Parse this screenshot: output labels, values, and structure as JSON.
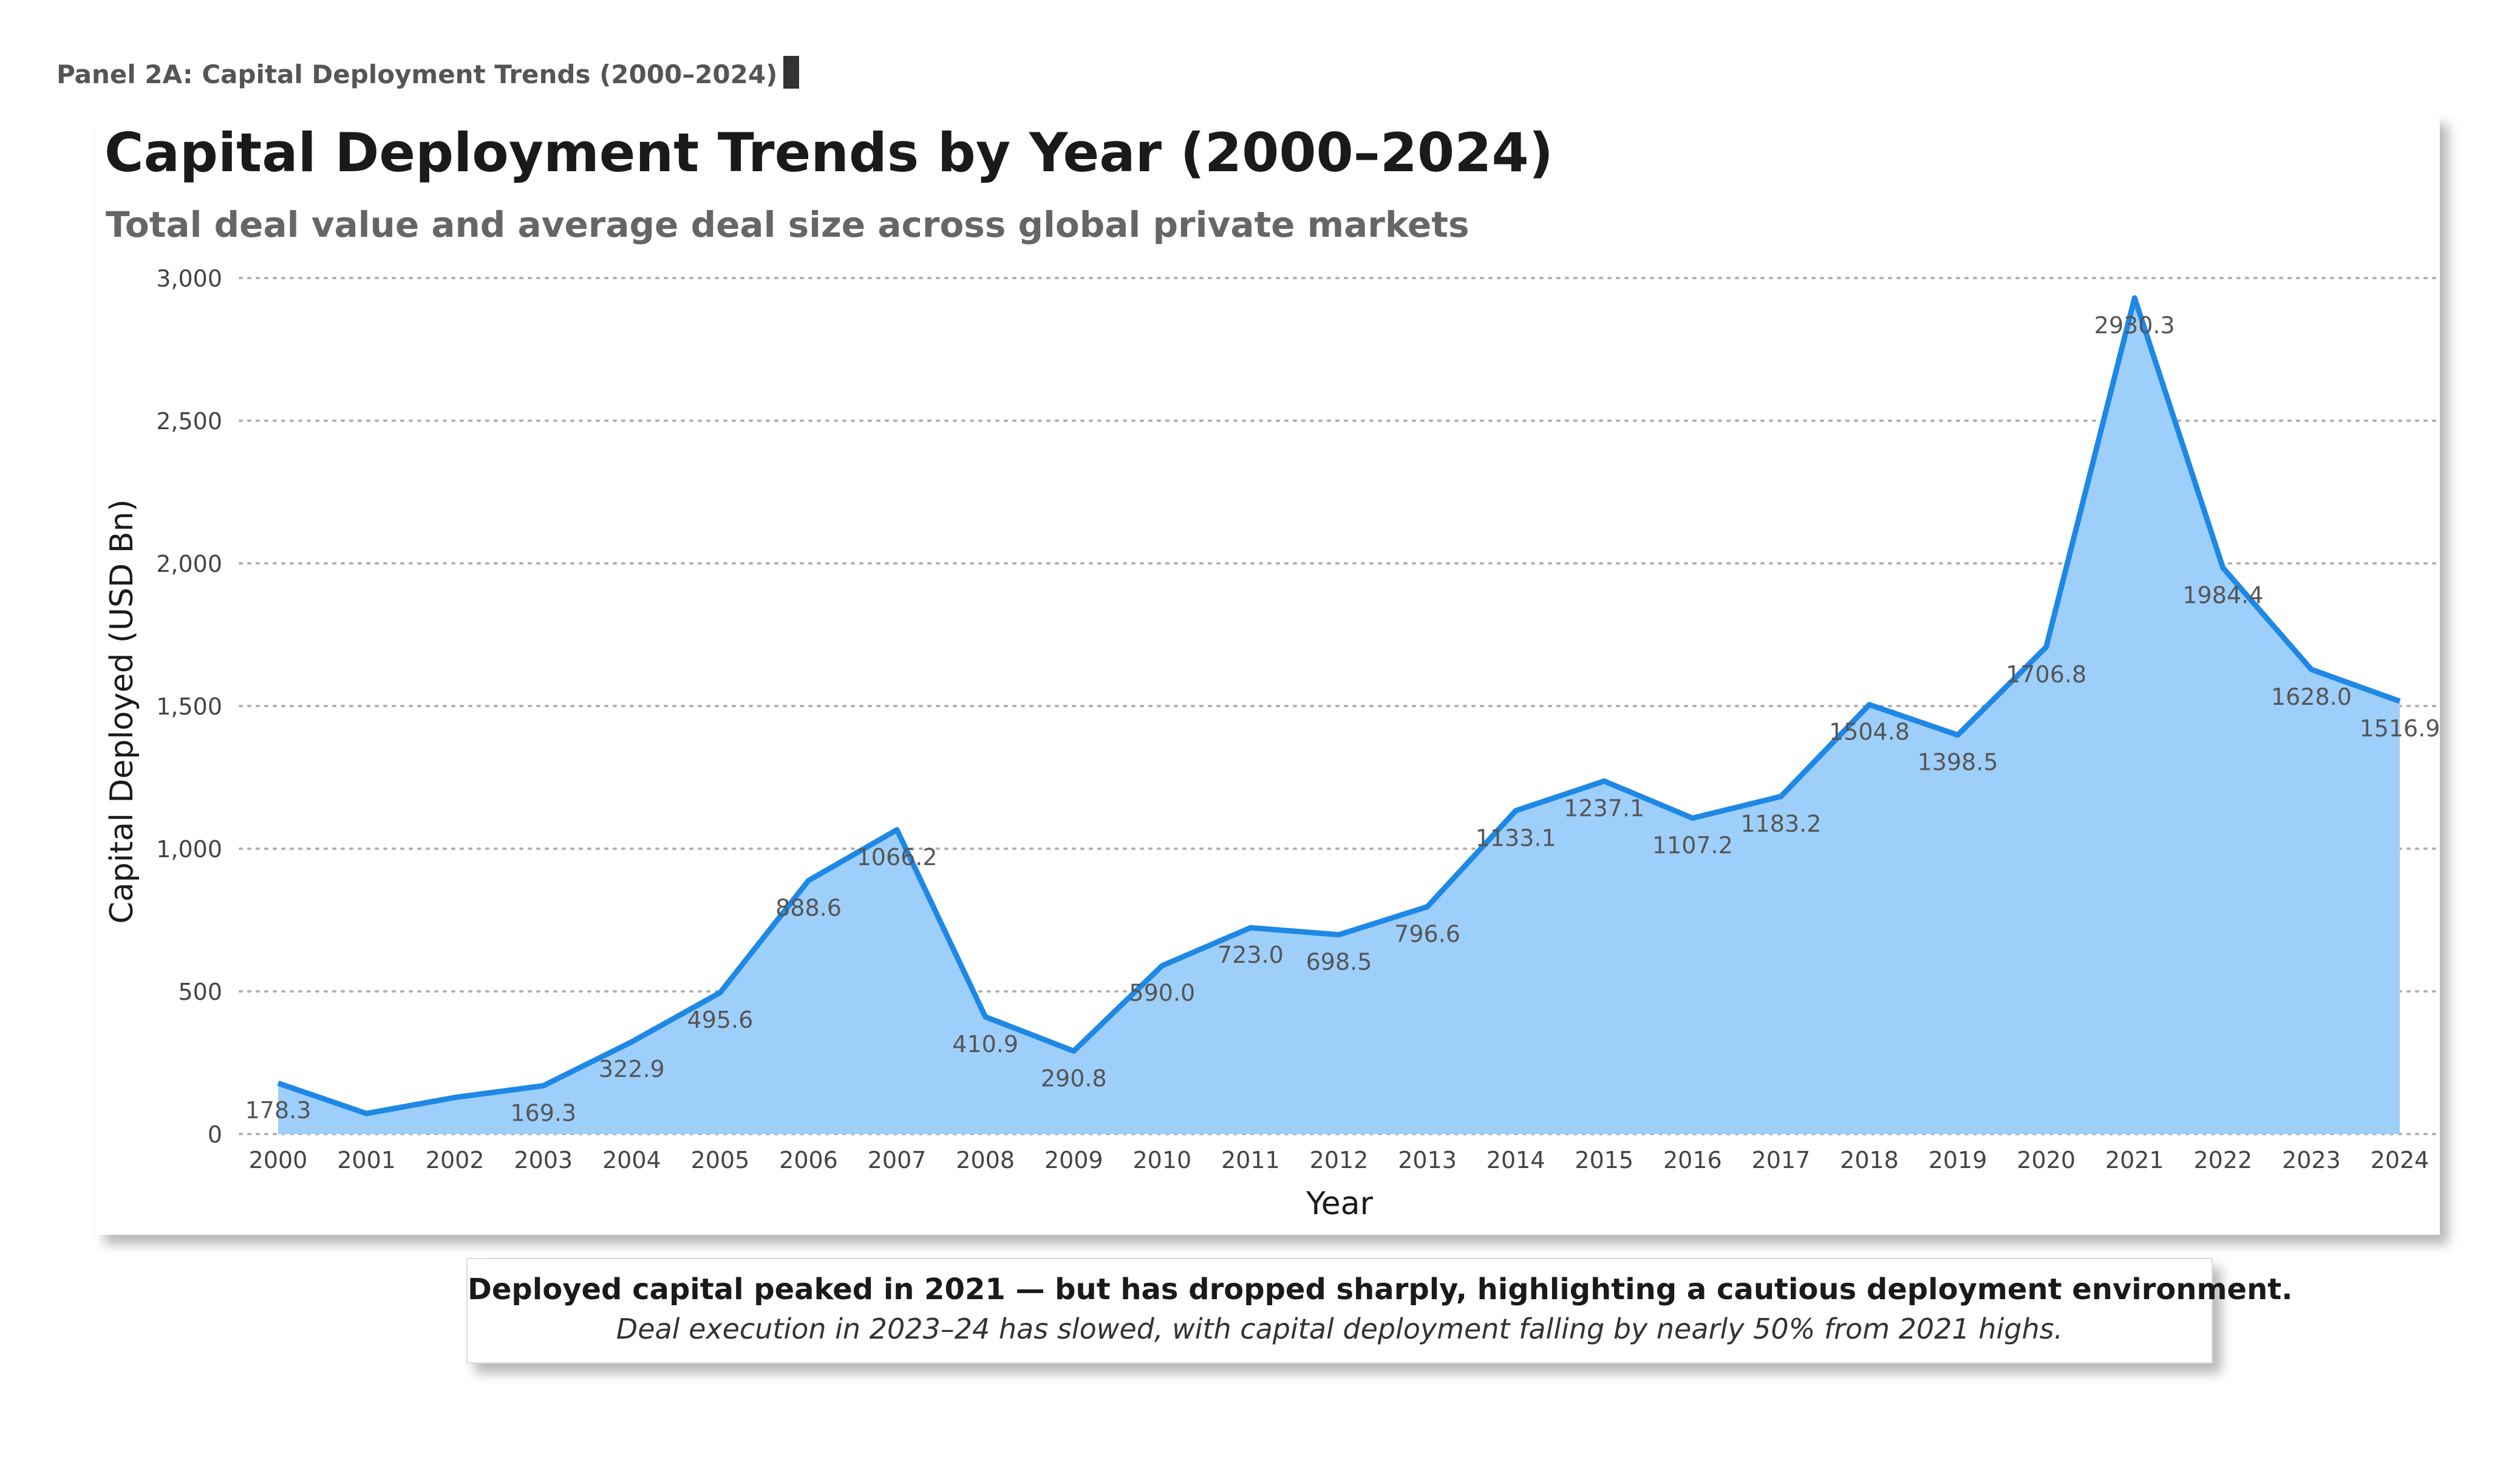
{
  "panel": {
    "label": "Panel 2A: Capital Deployment Trends (2000–2024)"
  },
  "chart_data": {
    "type": "area",
    "title": "Capital Deployment Trends by Year (2000–2024)",
    "subtitle": "Total deal value and average deal size across global private markets",
    "xlabel": "Year",
    "ylabel": "Capital Deployed (USD Bn)",
    "ylim": [
      0,
      3000
    ],
    "yticks": [
      0,
      500,
      1000,
      1500,
      2000,
      2500,
      3000
    ],
    "ytick_labels": [
      "0",
      "500",
      "1,000",
      "1,500",
      "2,000",
      "2,500",
      "3,000"
    ],
    "grid": true,
    "categories": [
      "2000",
      "2001",
      "2002",
      "2003",
      "2004",
      "2005",
      "2006",
      "2007",
      "2008",
      "2009",
      "2010",
      "2011",
      "2012",
      "2013",
      "2014",
      "2015",
      "2016",
      "2017",
      "2018",
      "2019",
      "2020",
      "2021",
      "2022",
      "2023",
      "2024"
    ],
    "values": [
      178.3,
      72,
      128,
      169.3,
      322.9,
      495.6,
      888.6,
      1066.2,
      410.9,
      290.8,
      590.0,
      723.0,
      698.5,
      796.6,
      1133.1,
      1237.1,
      1107.2,
      1183.2,
      1504.8,
      1398.5,
      1706.8,
      2930.3,
      1984.4,
      1628.0,
      1516.9
    ],
    "data_labels": [
      "178.3",
      "",
      "",
      "169.3",
      "322.9",
      "495.6",
      "888.6",
      "1066.2",
      "410.9",
      "290.8",
      "590.0",
      "723.0",
      "698.5",
      "796.6",
      "1133.1",
      "1237.1",
      "1107.2",
      "1183.2",
      "1504.8",
      "1398.5",
      "1706.8",
      "2930.3",
      "1984.4",
      "1628.0",
      "1516.9"
    ],
    "colors": {
      "line": "#1e88e5",
      "fill": "#9ecffa",
      "grid": "#b0b0b0",
      "label": "#555555"
    }
  },
  "callout": {
    "headline": "Deployed capital peaked in 2021 — but has dropped sharply, highlighting a cautious deployment environment.",
    "detail": "Deal execution in 2023–24 has slowed, with capital deployment falling by nearly 50% from 2021 highs."
  }
}
